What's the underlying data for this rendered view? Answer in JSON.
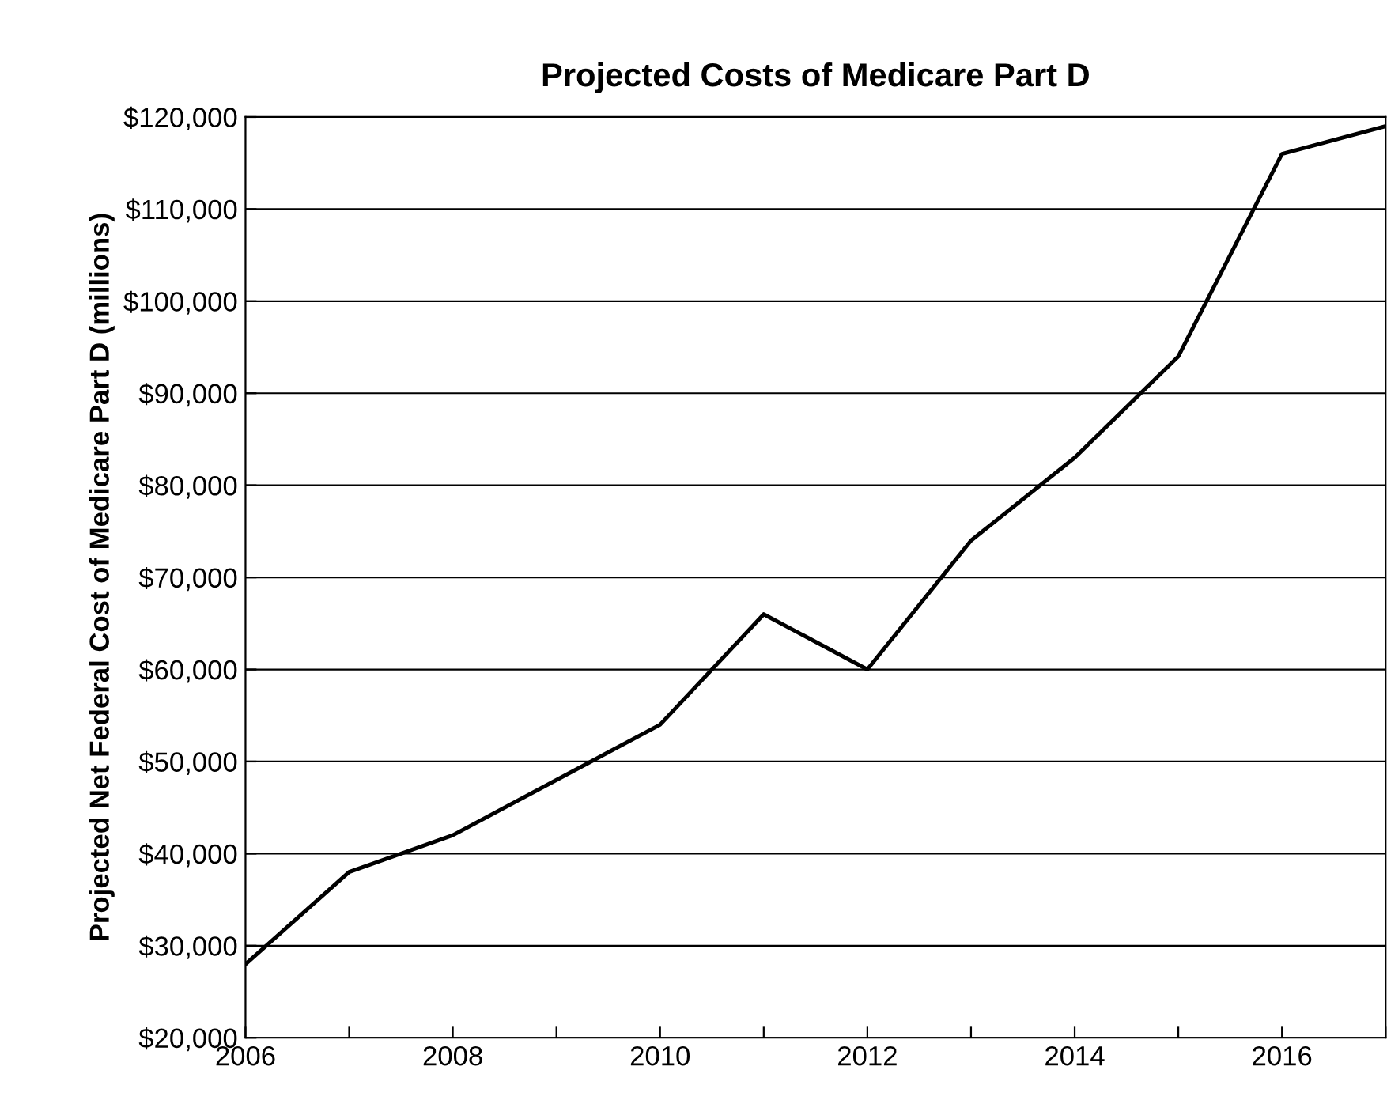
{
  "chart_data": {
    "type": "line",
    "title": "Projected Costs of Medicare Part D",
    "ylabel": "Projected Net Federal Cost of Medicare Part D (millions)",
    "x": [
      2006,
      2007,
      2008,
      2009,
      2010,
      2011,
      2012,
      2013,
      2014,
      2015,
      2016,
      2017
    ],
    "series": [
      {
        "color": "#000000",
        "values": [
          28000,
          38000,
          42000,
          48000,
          54000,
          66000,
          60000,
          74000,
          83000,
          94000,
          116000,
          119000
        ]
      }
    ],
    "xlim": [
      2006,
      2017
    ],
    "xticks": [
      2006,
      {
        "value": 2007,
        "label": null
      },
      2008,
      {
        "value": 2009,
        "label": null
      },
      2010,
      {
        "value": 2011,
        "label": null
      },
      2012,
      {
        "value": 2013,
        "label": null
      },
      2014,
      {
        "value": 2015,
        "label": null
      },
      2016,
      {
        "value": 2017,
        "label": null
      }
    ],
    "ylim": [
      20000,
      120000
    ],
    "yticks": [
      {
        "value": 20000,
        "label": "$20,000"
      },
      {
        "value": 30000,
        "label": "$30,000"
      },
      {
        "value": 40000,
        "label": "$40,000"
      },
      {
        "value": 50000,
        "label": "$50,000"
      },
      {
        "value": 60000,
        "label": "$60,000"
      },
      {
        "value": 70000,
        "label": "$70,000"
      },
      {
        "value": 80000,
        "label": "$80,000"
      },
      {
        "value": 90000,
        "label": "$90,000"
      },
      {
        "value": 100000,
        "label": "$100,000"
      },
      {
        "value": 110000,
        "label": "$110,000"
      },
      {
        "value": 120000,
        "label": "$120,000"
      }
    ],
    "grid": "y",
    "marker": "none",
    "line_style": "solid",
    "legend": false
  }
}
